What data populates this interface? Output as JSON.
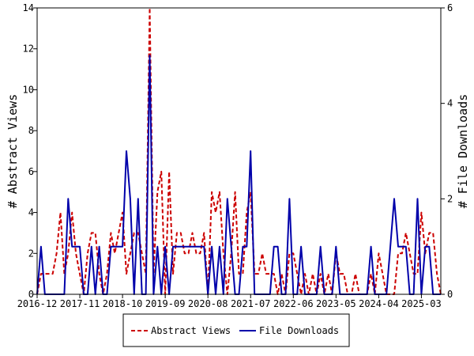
{
  "chart_data": {
    "type": "line",
    "x_ticks": [
      "2016-12",
      "2017-11",
      "2018-10",
      "2019-09",
      "2020-08",
      "2021-07",
      "2022-06",
      "2023-05",
      "2024-04",
      "2025-03"
    ],
    "ylabel_left": "# Abstract Views",
    "ylabel_right": "# File Downloads",
    "ylim_left": [
      0,
      14
    ],
    "ylim_right": [
      0,
      6
    ],
    "yticks_left": [
      "0",
      "2",
      "4",
      "6",
      "8",
      "10",
      "12",
      "14"
    ],
    "yticks_right": [
      "0",
      "2",
      "4",
      "6"
    ],
    "x_index_range": [
      0,
      104
    ],
    "x_tick_indices": [
      0,
      11,
      22,
      33,
      44,
      55,
      66,
      77,
      88,
      99
    ],
    "grid": false,
    "legend_position": "bottom",
    "series": [
      {
        "name": "Abstract Views",
        "axis": "left",
        "color": "#cc0000",
        "style": "dashed",
        "values": [
          0,
          1,
          1,
          1,
          1,
          2,
          4,
          1,
          2,
          4,
          2,
          1,
          0,
          2,
          3,
          3,
          1,
          0,
          1,
          3,
          2,
          3,
          4,
          1,
          2,
          3,
          3,
          2,
          1,
          14,
          1,
          5,
          6,
          0,
          6,
          1,
          3,
          3,
          2,
          2,
          3,
          2,
          2,
          3,
          0,
          5,
          4,
          5,
          2,
          0,
          2,
          5,
          1,
          1,
          4,
          5,
          1,
          1,
          2,
          1,
          1,
          1,
          0,
          1,
          0,
          2,
          2,
          1,
          0,
          1,
          0,
          1,
          0,
          1,
          0,
          1,
          0,
          2,
          1,
          1,
          0,
          0,
          1,
          0,
          0,
          0,
          1,
          0,
          2,
          1,
          0,
          0,
          0,
          2,
          2,
          3,
          2,
          1,
          1,
          4,
          2,
          3,
          3,
          1,
          0
        ]
      },
      {
        "name": "File Downloads",
        "axis": "right",
        "color": "#0000aa",
        "style": "solid",
        "values": [
          0,
          1,
          0,
          0,
          0,
          0,
          0,
          0,
          2,
          1,
          1,
          1,
          0,
          0,
          1,
          0,
          1,
          0,
          0,
          1,
          1,
          1,
          1,
          3,
          2,
          0,
          2,
          0,
          0,
          5,
          0,
          1,
          0,
          1,
          0,
          1,
          1,
          1,
          1,
          1,
          1,
          1,
          1,
          1,
          0,
          1,
          0,
          1,
          0,
          2,
          1,
          0,
          0,
          1,
          1,
          3,
          0,
          0,
          0,
          0,
          0,
          1,
          1,
          0,
          0,
          2,
          0,
          0,
          1,
          0,
          0,
          0,
          0,
          1,
          0,
          0,
          0,
          1,
          0,
          0,
          0,
          0,
          0,
          0,
          0,
          0,
          1,
          0,
          0,
          0,
          0,
          1,
          2,
          1,
          1,
          1,
          0,
          0,
          2,
          0,
          1,
          1,
          0,
          0,
          0
        ]
      }
    ]
  }
}
